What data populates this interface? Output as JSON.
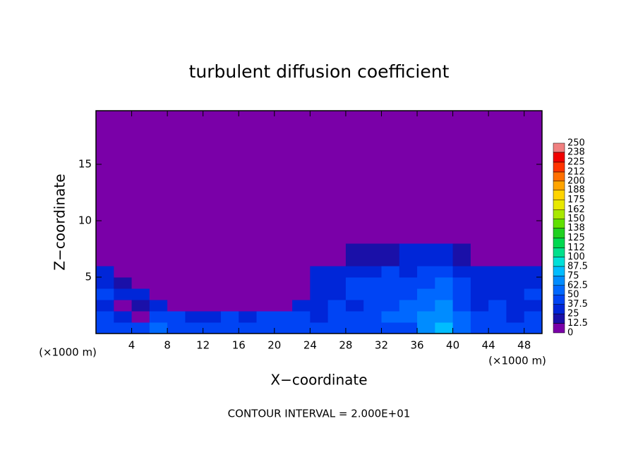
{
  "chart_data": {
    "type": "heatmap",
    "title": "turbulent diffusion coefficient",
    "x_label": "X−coordinate",
    "y_label": "Z−coordinate",
    "x_unit": "(×1000 m)",
    "footer": "CONTOUR INTERVAL = 2.000E+01",
    "xlim": [
      0,
      50
    ],
    "ylim": [
      0,
      19.75
    ],
    "xticks": [
      4,
      8,
      12,
      16,
      20,
      24,
      28,
      32,
      36,
      40,
      44,
      48
    ],
    "yticks": [
      5,
      10,
      15
    ],
    "colorbar": {
      "levels": [
        0,
        12.5,
        25,
        37.5,
        50,
        62.5,
        75,
        87.5,
        100,
        112,
        125,
        138,
        150,
        162,
        175,
        188,
        200,
        212,
        225,
        238,
        250
      ],
      "colors": [
        "#7a00a8",
        "#1a10a8",
        "#0026d8",
        "#0044f4",
        "#0068ff",
        "#008cff",
        "#00bcff",
        "#00e0d8",
        "#00e08c",
        "#00d850",
        "#20d020",
        "#60e000",
        "#a8e800",
        "#e8e800",
        "#ffd400",
        "#ffa400",
        "#ff7000",
        "#ff3400",
        "#f00000",
        "#f08080"
      ]
    },
    "field": {
      "x_edges": [
        0,
        2,
        4,
        6,
        8,
        10,
        12,
        14,
        16,
        18,
        20,
        22,
        24,
        26,
        28,
        30,
        32,
        34,
        36,
        38,
        40,
        42,
        44,
        46,
        48,
        50
      ],
      "z_edges": [
        0,
        1,
        2,
        3,
        4,
        5,
        6,
        8,
        19.75
      ],
      "values": [
        [
          40,
          45,
          45,
          50,
          45,
          40,
          45,
          40,
          45,
          40,
          40,
          45,
          40,
          45,
          40,
          45,
          40,
          45,
          70,
          75,
          60,
          45,
          40,
          45,
          40
        ],
        [
          40,
          30,
          10,
          40,
          45,
          30,
          35,
          45,
          25,
          45,
          40,
          40,
          30,
          45,
          40,
          45,
          50,
          60,
          65,
          70,
          50,
          40,
          40,
          35,
          40
        ],
        [
          35,
          10,
          20,
          25,
          5,
          5,
          5,
          5,
          5,
          5,
          10,
          30,
          25,
          40,
          35,
          40,
          45,
          55,
          60,
          65,
          45,
          35,
          40,
          35,
          30
        ],
        [
          40,
          25,
          30,
          5,
          0,
          5,
          5,
          0,
          0,
          10,
          10,
          5,
          30,
          35,
          40,
          40,
          45,
          45,
          55,
          50,
          40,
          35,
          35,
          30,
          40
        ],
        [
          35,
          20,
          5,
          0,
          0,
          0,
          0,
          0,
          10,
          5,
          5,
          0,
          35,
          35,
          40,
          40,
          40,
          45,
          45,
          50,
          40,
          35,
          35,
          35,
          35
        ],
        [
          30,
          0,
          0,
          0,
          0,
          0,
          0,
          0,
          0,
          0,
          0,
          0,
          25,
          35,
          35,
          35,
          40,
          35,
          40,
          45,
          35,
          35,
          35,
          30,
          35
        ],
        [
          10,
          0,
          0,
          0,
          0,
          0,
          0,
          0,
          0,
          0,
          0,
          0,
          0,
          10,
          15,
          20,
          20,
          25,
          30,
          35,
          15,
          5,
          10,
          5,
          5
        ],
        [
          0,
          0,
          0,
          0,
          0,
          0,
          0,
          0,
          0,
          0,
          0,
          0,
          0,
          0,
          0,
          0,
          0,
          0,
          0,
          0,
          0,
          0,
          0,
          0,
          0
        ]
      ]
    }
  }
}
